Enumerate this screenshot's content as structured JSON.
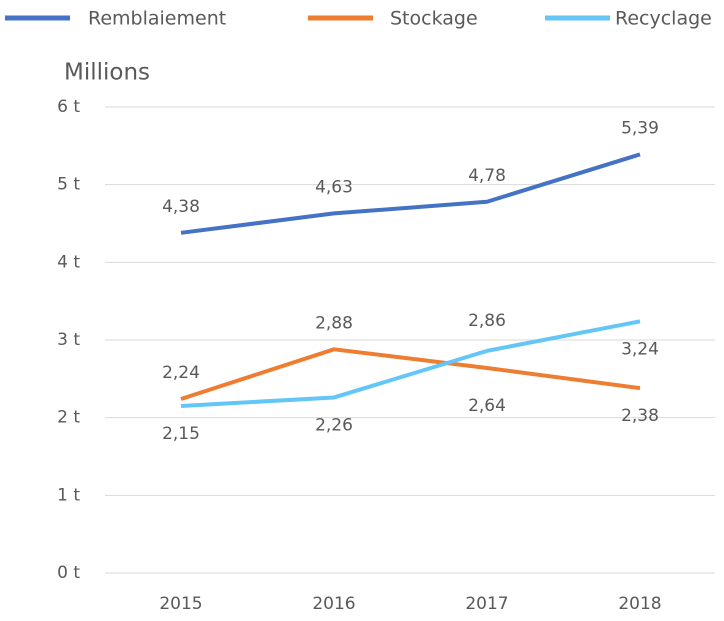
{
  "chart_data": {
    "type": "line",
    "y_axis_label": "Millions",
    "categories": [
      "2015",
      "2016",
      "2017",
      "2018"
    ],
    "series": [
      {
        "name": "Remblaiement",
        "color": "#4472c4",
        "values": [
          4.38,
          4.63,
          4.78,
          5.39
        ],
        "value_labels": [
          "4,38",
          "4,63",
          "4,78",
          "5,39"
        ]
      },
      {
        "name": "Stockage",
        "color": "#ed7d31",
        "values": [
          2.24,
          2.88,
          2.64,
          2.38
        ],
        "value_labels": [
          "2,24",
          "2,88",
          "2,64",
          "2,38"
        ]
      },
      {
        "name": "Recyclage",
        "color": "#63c6f7",
        "values": [
          2.15,
          2.26,
          2.86,
          3.24
        ],
        "value_labels": [
          "2,15",
          "2,26",
          "2,86",
          "3,24"
        ]
      }
    ],
    "ylim": [
      0,
      6
    ],
    "yticks": [
      {
        "value": 0,
        "label": "0 t"
      },
      {
        "value": 1,
        "label": "1 t"
      },
      {
        "value": 2,
        "label": "2 t"
      },
      {
        "value": 3,
        "label": "3 t"
      },
      {
        "value": 4,
        "label": "4 t"
      },
      {
        "value": 5,
        "label": "5 t"
      },
      {
        "value": 6,
        "label": "6 t"
      }
    ],
    "grid": true,
    "legend": "top"
  }
}
